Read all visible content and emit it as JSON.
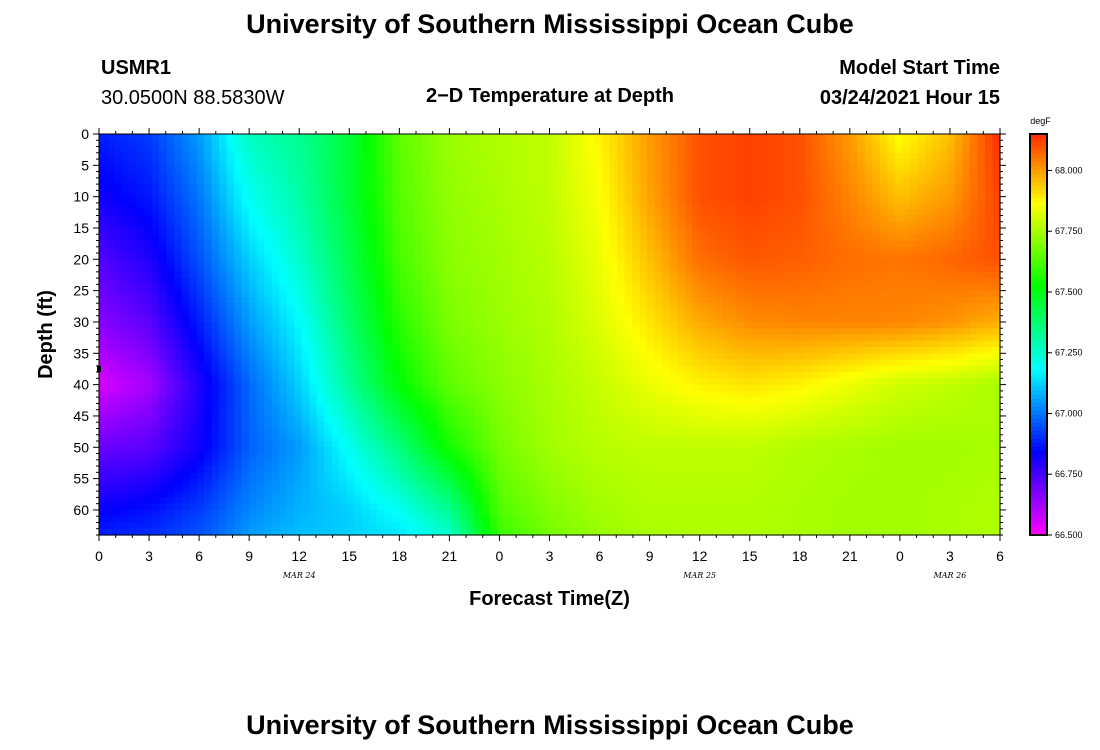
{
  "page": {
    "title_top": "University of Southern Mississippi Ocean Cube",
    "title_bottom": "University of Southern Mississippi Ocean Cube",
    "station_id": "USMR1",
    "station_coords": "30.0500N 88.5830W",
    "plot_title": "2−D Temperature at Depth",
    "model_start_label": "Model Start Time",
    "model_start_value": "03/24/2021 Hour 15"
  },
  "chart_data": {
    "type": "heatmap",
    "title": "2−D Temperature at Depth",
    "xlabel": "Forecast Time(Z)",
    "ylabel": "Depth (ft)",
    "x_unit": "hours from 03/24 00Z",
    "x_range": [
      0,
      54
    ],
    "x_ticks": [
      0,
      3,
      6,
      9,
      12,
      15,
      18,
      21,
      24,
      27,
      30,
      33,
      36,
      39,
      42,
      45,
      48,
      51,
      54
    ],
    "x_tick_labels": [
      "0",
      "3",
      "6",
      "9",
      "12",
      "15",
      "18",
      "21",
      "0",
      "3",
      "6",
      "9",
      "12",
      "15",
      "18",
      "21",
      "0",
      "3",
      "6"
    ],
    "date_labels": [
      {
        "x": 12,
        "text": "MAR 24"
      },
      {
        "x": 36,
        "text": "MAR 25"
      },
      {
        "x": 51,
        "text": "MAR 26"
      }
    ],
    "y_range": [
      0,
      64
    ],
    "y_ticks": [
      0,
      5,
      10,
      15,
      20,
      25,
      30,
      35,
      40,
      45,
      50,
      55,
      60
    ],
    "colorbar": {
      "unit": "degF",
      "min": 66.5,
      "max": 68.15,
      "ticks": [
        66.5,
        66.75,
        67.0,
        67.25,
        67.5,
        67.75,
        68.0
      ],
      "tick_labels": [
        "66.500",
        "66.750",
        "67.000",
        "67.250",
        "67.500",
        "67.750",
        "68.000"
      ]
    },
    "grid": {
      "times": [
        0,
        3,
        6,
        9,
        12,
        15,
        18,
        21,
        24,
        27,
        30,
        33,
        36,
        39,
        42,
        45,
        48,
        51,
        54
      ],
      "depths": [
        0,
        10,
        20,
        30,
        40,
        50,
        60,
        64
      ],
      "values": [
        [
          66.88,
          66.92,
          67.05,
          67.27,
          67.33,
          67.45,
          67.65,
          67.73,
          67.76,
          67.78,
          67.88,
          68.0,
          68.1,
          68.12,
          68.1,
          68.0,
          67.86,
          67.95,
          68.15
        ],
        [
          66.82,
          66.87,
          67.0,
          67.2,
          67.3,
          67.45,
          67.64,
          67.72,
          67.75,
          67.78,
          67.86,
          67.99,
          68.1,
          68.12,
          68.1,
          68.03,
          67.95,
          68.0,
          68.12
        ],
        [
          66.73,
          66.8,
          66.95,
          67.12,
          67.25,
          67.42,
          67.62,
          67.71,
          67.74,
          67.77,
          67.84,
          67.95,
          68.06,
          68.09,
          68.08,
          68.06,
          68.05,
          68.07,
          68.1
        ],
        [
          66.66,
          66.72,
          66.88,
          67.05,
          67.18,
          67.38,
          67.58,
          67.69,
          67.73,
          67.76,
          67.82,
          67.9,
          67.98,
          68.02,
          68.03,
          68.03,
          68.03,
          68.01,
          67.97
        ],
        [
          66.55,
          66.62,
          66.8,
          66.98,
          67.12,
          67.32,
          67.52,
          67.65,
          67.71,
          67.75,
          67.79,
          67.84,
          67.88,
          67.9,
          67.88,
          67.84,
          67.8,
          67.78,
          67.75
        ],
        [
          66.7,
          66.72,
          66.82,
          66.97,
          67.05,
          67.2,
          67.36,
          67.55,
          67.68,
          67.74,
          67.77,
          67.78,
          67.78,
          67.78,
          67.76,
          67.75,
          67.74,
          67.74,
          67.75
        ],
        [
          66.83,
          66.86,
          66.92,
          67.02,
          67.08,
          67.12,
          67.2,
          67.33,
          67.63,
          67.7,
          67.74,
          67.76,
          67.76,
          67.76,
          67.75,
          67.74,
          67.74,
          67.75,
          67.76
        ],
        [
          66.88,
          66.9,
          66.95,
          67.05,
          67.1,
          67.12,
          67.15,
          67.25,
          67.6,
          67.68,
          67.73,
          67.75,
          67.76,
          67.76,
          67.75,
          67.74,
          67.74,
          67.75,
          67.76
        ]
      ]
    }
  }
}
